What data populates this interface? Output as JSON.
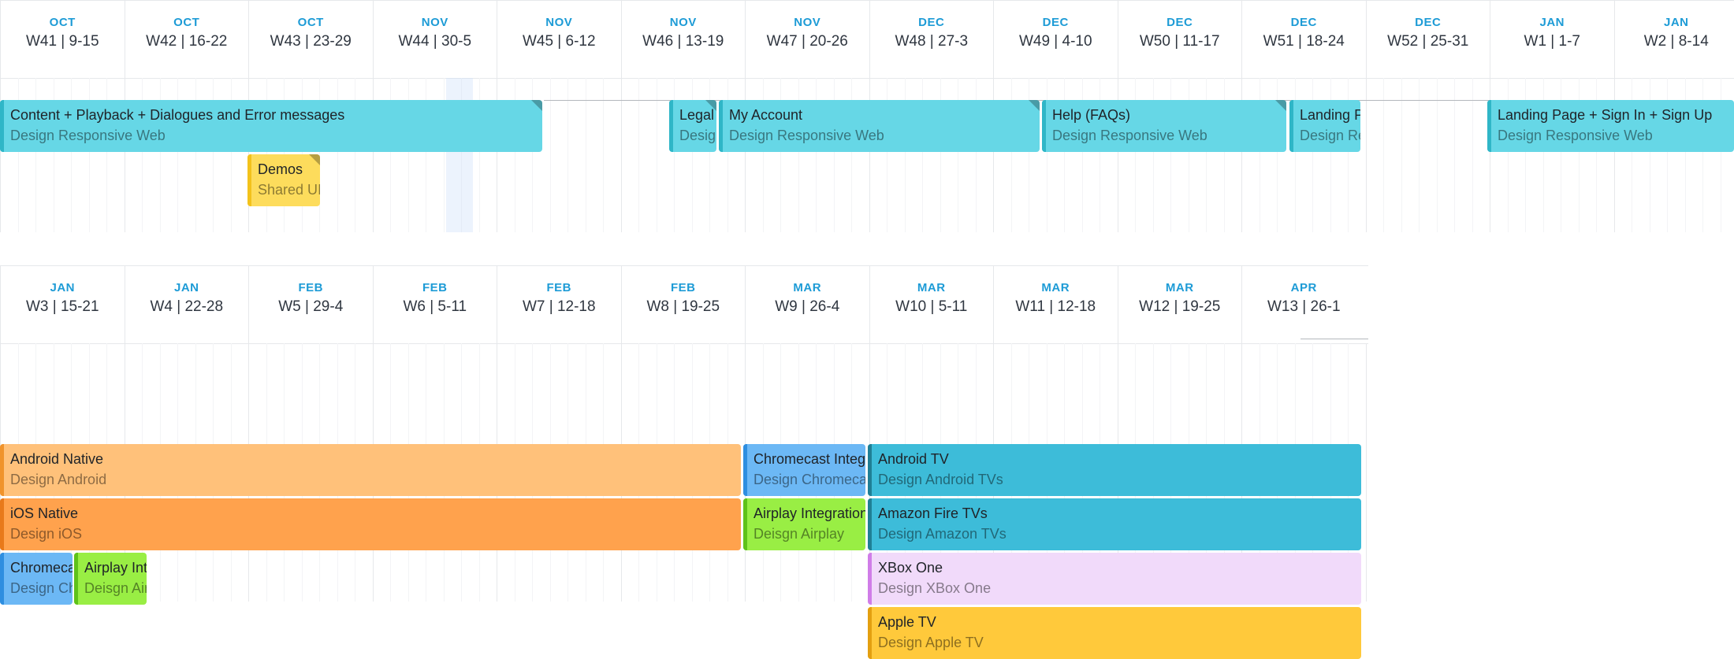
{
  "timelines": [
    {
      "weeks": [
        {
          "month": "OCT",
          "label": "W41 | 9-15"
        },
        {
          "month": "OCT",
          "label": "W42 | 16-22"
        },
        {
          "month": "OCT",
          "label": "W43 | 23-29"
        },
        {
          "month": "NOV",
          "label": "W44 | 30-5"
        },
        {
          "month": "NOV",
          "label": "W45 | 6-12"
        },
        {
          "month": "NOV",
          "label": "W46 | 13-19"
        },
        {
          "month": "NOV",
          "label": "W47 | 20-26"
        },
        {
          "month": "DEC",
          "label": "W48 | 27-3"
        },
        {
          "month": "DEC",
          "label": "W49 | 4-10"
        },
        {
          "month": "DEC",
          "label": "W50 | 11-17"
        },
        {
          "month": "DEC",
          "label": "W51 | 18-24"
        },
        {
          "month": "DEC",
          "label": "W52 | 25-31"
        },
        {
          "month": "JAN",
          "label": "W1 | 1-7"
        },
        {
          "month": "JAN",
          "label": "W2 | 8-14"
        }
      ],
      "tasks": [
        {
          "title": "Content + Playback + Dialogues and Error messages",
          "subtitle": "Design Responsive Web",
          "color": "#66d7e6",
          "stripe": "#2fb6c7",
          "corner": true
        },
        {
          "title": "Legal",
          "subtitle": "Design Responsive Web",
          "color": "#66d7e6",
          "stripe": "#2fb6c7",
          "corner": true
        },
        {
          "title": "My Account",
          "subtitle": "Design Responsive Web",
          "color": "#66d7e6",
          "stripe": "#2fb6c7",
          "corner": true
        },
        {
          "title": "Help (FAQs)",
          "subtitle": "Design Responsive Web",
          "color": "#66d7e6",
          "stripe": "#2fb6c7",
          "corner": true
        },
        {
          "title": "Landing Page",
          "subtitle": "Design Responsive Web",
          "color": "#66d7e6",
          "stripe": "#2fb6c7",
          "corner": false
        },
        {
          "title": "Landing Page + Sign In + Sign Up",
          "subtitle": "Design Responsive Web",
          "color": "#66d7e6",
          "stripe": "#2fb6c7",
          "corner": false
        },
        {
          "title": "Demos",
          "subtitle": "Shared UI",
          "color": "#fddc5c",
          "stripe": "#f3c21b",
          "corner": true
        }
      ]
    },
    {
      "weeks": [
        {
          "month": "JAN",
          "label": "W3 | 15-21"
        },
        {
          "month": "JAN",
          "label": "W4 | 22-28"
        },
        {
          "month": "FEB",
          "label": "W5 | 29-4"
        },
        {
          "month": "FEB",
          "label": "W6 | 5-11"
        },
        {
          "month": "FEB",
          "label": "W7 | 12-18"
        },
        {
          "month": "FEB",
          "label": "W8 | 19-25"
        },
        {
          "month": "MAR",
          "label": "W9 | 26-4"
        },
        {
          "month": "MAR",
          "label": "W10 | 5-11"
        },
        {
          "month": "MAR",
          "label": "W11 | 12-18"
        },
        {
          "month": "MAR",
          "label": "W12 | 19-25"
        },
        {
          "month": "APR",
          "label": "W13 | 26-1"
        }
      ],
      "tasks": [
        {
          "title": "Android Native",
          "subtitle": "Design Android",
          "color": "#ffc17a",
          "stripe": "#f0932b",
          "corner": false
        },
        {
          "title": "iOS Native",
          "subtitle": "Design iOS",
          "color": "#ffa24d",
          "stripe": "#e8791a",
          "corner": false
        },
        {
          "title": "Chromecast",
          "subtitle": "Design Chromecast",
          "color": "#6cb8f5",
          "stripe": "#2e8ee0",
          "corner": false
        },
        {
          "title": "Airplay Integration",
          "subtitle": "Deisgn Airplay",
          "color": "#99ee44",
          "stripe": "#5fc21a",
          "corner": false
        },
        {
          "title": "Chromecast Integration",
          "subtitle": "Design Chromecast",
          "color": "#6cb8f5",
          "stripe": "#2e8ee0",
          "corner": false
        },
        {
          "title": "Airplay Integration",
          "subtitle": "Deisgn Airplay",
          "color": "#99ee44",
          "stripe": "#5fc21a",
          "corner": false
        },
        {
          "title": "Android TV",
          "subtitle": "Design Android TVs",
          "color": "#3dbcd9",
          "stripe": "#1f7f95",
          "corner": false
        },
        {
          "title": "Amazon Fire TVs",
          "subtitle": "Design Amazon TVs",
          "color": "#3dbcd9",
          "stripe": "#1f7f95",
          "corner": false
        },
        {
          "title": "XBox One",
          "subtitle": "Design XBox One",
          "color": "#f1dafa",
          "stripe": "#d07de8",
          "corner": false
        },
        {
          "title": "Apple TV",
          "subtitle": "Design Apple TV",
          "color": "#ffc93b",
          "stripe": "#e39f10",
          "corner": false
        }
      ]
    }
  ]
}
